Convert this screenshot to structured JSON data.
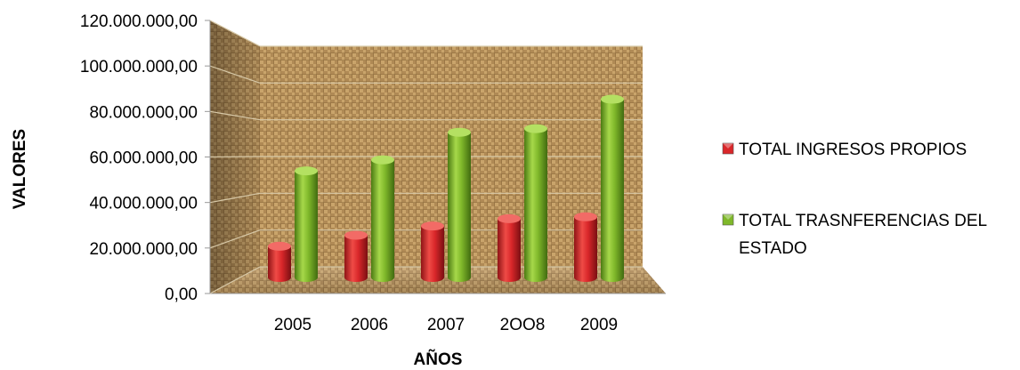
{
  "chart_data": {
    "type": "bar",
    "title": "",
    "xlabel": "AÑOS",
    "ylabel": "VALORES",
    "categories": [
      "2005",
      "2006",
      "2007",
      "2OO8",
      "2009"
    ],
    "series": [
      {
        "name": "TOTAL INGRESOS PROPIOS",
        "color": "#d9272a",
        "values": [
          17000000,
          23000000,
          28000000,
          32000000,
          33000000
        ]
      },
      {
        "name": "TOTAL TRASNFERENCIAS DEL ESTADO",
        "color": "#7fb82a",
        "values": [
          58000000,
          64000000,
          79000000,
          81000000,
          97000000
        ]
      }
    ],
    "ylim": [
      0,
      120000000
    ],
    "yticks": [
      "0,00",
      "20.000.000,00",
      "40.000.000,00",
      "60.000.000,00",
      "80.000.000,00",
      "100.000.000,00",
      "120.000.000,00"
    ],
    "legend_position": "right",
    "grid": true,
    "style": "3d-columns-textured-background"
  }
}
